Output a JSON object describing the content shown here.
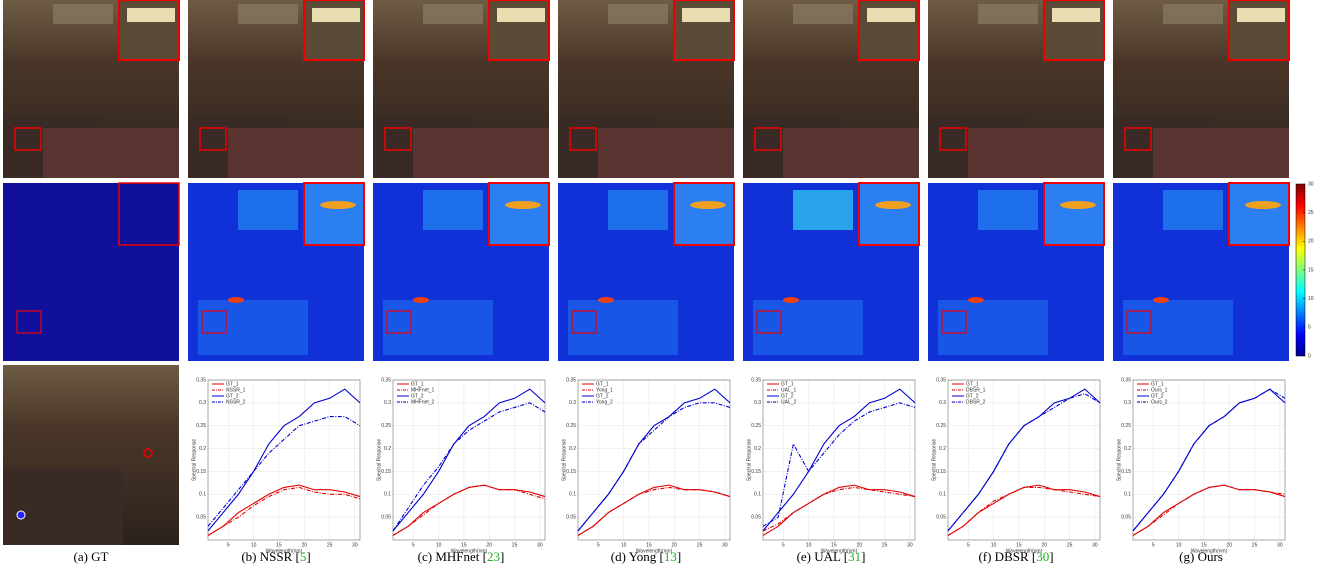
{
  "figure": {
    "captions": [
      {
        "text": "(a) GT"
      },
      {
        "text": "(b) NSSR [",
        "ref": "5",
        "close": "]"
      },
      {
        "text": "(c) MHFnet [",
        "ref": "23",
        "close": "]"
      },
      {
        "text": "(d) Yong [",
        "ref": "13",
        "close": "]"
      },
      {
        "text": "(e) UAL [",
        "ref": "31",
        "close": "]"
      },
      {
        "text": "(f) DBSR [",
        "ref": "30",
        "close": "]"
      },
      {
        "text": "(g) Ours"
      }
    ],
    "colorbar": {
      "ticks": [
        0,
        5,
        10,
        15,
        20,
        25,
        30
      ],
      "lim": [
        0,
        30
      ]
    },
    "panels": [
      {
        "type": "line",
        "ylabel": "Spectral Response",
        "xlabel": "Wavelength(nm)",
        "x": [
          1,
          4,
          7,
          10,
          13,
          16,
          19,
          22,
          25,
          28,
          31
        ],
        "xlim": [
          1,
          31
        ],
        "ylim": [
          0,
          0.35
        ],
        "xticks": [
          5,
          10,
          15,
          20,
          25,
          30
        ],
        "yticks": [
          0.05,
          0.1,
          0.15,
          0.2,
          0.25,
          0.3,
          0.35
        ],
        "grid": true,
        "series": [
          {
            "name": "GT_1",
            "color": "#e00000",
            "dashed": false,
            "values": [
              0.01,
              0.03,
              0.06,
              0.08,
              0.1,
              0.115,
              0.12,
              0.11,
              0.11,
              0.105,
              0.095
            ]
          },
          {
            "name": "NSSR_1",
            "color": "#e00000",
            "dashed": true,
            "values": [
              0.01,
              0.03,
              0.05,
              0.075,
              0.095,
              0.11,
              0.115,
              0.105,
              0.1,
              0.1,
              0.09
            ]
          },
          {
            "name": "GT_2",
            "color": "#0000d0",
            "dashed": false,
            "values": [
              0.02,
              0.06,
              0.1,
              0.15,
              0.21,
              0.25,
              0.27,
              0.3,
              0.31,
              0.33,
              0.3
            ]
          },
          {
            "name": "NSSR_2",
            "color": "#0000d0",
            "dashed": true,
            "values": [
              0.03,
              0.07,
              0.11,
              0.15,
              0.19,
              0.22,
              0.25,
              0.26,
              0.27,
              0.27,
              0.25
            ]
          }
        ]
      },
      {
        "type": "line",
        "ylabel": "Spectral Response",
        "xlabel": "Wavelength(nm)",
        "x": [
          1,
          4,
          7,
          10,
          13,
          16,
          19,
          22,
          25,
          28,
          31
        ],
        "xlim": [
          1,
          31
        ],
        "ylim": [
          0,
          0.35
        ],
        "xticks": [
          5,
          10,
          15,
          20,
          25,
          30
        ],
        "yticks": [
          0.05,
          0.1,
          0.15,
          0.2,
          0.25,
          0.3,
          0.35
        ],
        "grid": true,
        "series": [
          {
            "name": "GT_1",
            "color": "#e00000",
            "dashed": false,
            "values": [
              0.01,
              0.03,
              0.06,
              0.08,
              0.1,
              0.115,
              0.12,
              0.11,
              0.11,
              0.105,
              0.095
            ]
          },
          {
            "name": "MHFnet_1",
            "color": "#e00000",
            "dashed": true,
            "values": [
              0.01,
              0.03,
              0.055,
              0.08,
              0.1,
              0.115,
              0.12,
              0.11,
              0.11,
              0.1,
              0.09
            ]
          },
          {
            "name": "GT_2",
            "color": "#0000d0",
            "dashed": false,
            "values": [
              0.02,
              0.06,
              0.1,
              0.15,
              0.21,
              0.25,
              0.27,
              0.3,
              0.31,
              0.33,
              0.3
            ]
          },
          {
            "name": "MHFnet_2",
            "color": "#0000d0",
            "dashed": true,
            "values": [
              0.02,
              0.07,
              0.12,
              0.16,
              0.21,
              0.24,
              0.26,
              0.28,
              0.29,
              0.3,
              0.28
            ]
          }
        ]
      },
      {
        "type": "line",
        "ylabel": "Spectral Response",
        "xlabel": "Wavelength(nm)",
        "x": [
          1,
          4,
          7,
          10,
          13,
          16,
          19,
          22,
          25,
          28,
          31
        ],
        "xlim": [
          1,
          31
        ],
        "ylim": [
          0,
          0.35
        ],
        "xticks": [
          5,
          10,
          15,
          20,
          25,
          30
        ],
        "yticks": [
          0.05,
          0.1,
          0.15,
          0.2,
          0.25,
          0.3,
          0.35
        ],
        "grid": true,
        "series": [
          {
            "name": "GT_1",
            "color": "#e00000",
            "dashed": false,
            "values": [
              0.01,
              0.03,
              0.06,
              0.08,
              0.1,
              0.115,
              0.12,
              0.11,
              0.11,
              0.105,
              0.095
            ]
          },
          {
            "name": "Yong_1",
            "color": "#e00000",
            "dashed": true,
            "values": [
              0.01,
              0.03,
              0.06,
              0.08,
              0.1,
              0.11,
              0.115,
              0.11,
              0.11,
              0.105,
              0.095
            ]
          },
          {
            "name": "GT_2",
            "color": "#0000d0",
            "dashed": false,
            "values": [
              0.02,
              0.06,
              0.1,
              0.15,
              0.21,
              0.25,
              0.27,
              0.3,
              0.31,
              0.33,
              0.3
            ]
          },
          {
            "name": "Yong_2",
            "color": "#0000d0",
            "dashed": true,
            "values": [
              0.02,
              0.06,
              0.1,
              0.15,
              0.21,
              0.24,
              0.27,
              0.29,
              0.3,
              0.3,
              0.29
            ]
          }
        ]
      },
      {
        "type": "line",
        "ylabel": "Spectral Response",
        "xlabel": "Wavelength(nm)",
        "x": [
          1,
          4,
          7,
          10,
          13,
          16,
          19,
          22,
          25,
          28,
          31
        ],
        "xlim": [
          1,
          31
        ],
        "ylim": [
          0,
          0.35
        ],
        "xticks": [
          5,
          10,
          15,
          20,
          25,
          30
        ],
        "yticks": [
          0.05,
          0.1,
          0.15,
          0.2,
          0.25,
          0.3,
          0.35
        ],
        "grid": true,
        "series": [
          {
            "name": "GT_1",
            "color": "#e00000",
            "dashed": false,
            "values": [
              0.01,
              0.03,
              0.06,
              0.08,
              0.1,
              0.115,
              0.12,
              0.11,
              0.11,
              0.105,
              0.095
            ]
          },
          {
            "name": "UAL_1",
            "color": "#e00000",
            "dashed": true,
            "values": [
              0.02,
              0.035,
              0.06,
              0.08,
              0.1,
              0.11,
              0.115,
              0.11,
              0.105,
              0.1,
              0.095
            ]
          },
          {
            "name": "GT_2",
            "color": "#0000d0",
            "dashed": false,
            "values": [
              0.02,
              0.06,
              0.1,
              0.15,
              0.21,
              0.25,
              0.27,
              0.3,
              0.31,
              0.33,
              0.3
            ]
          },
          {
            "name": "UAL_2",
            "color": "#0000d0",
            "dashed": true,
            "values": [
              0.03,
              0.05,
              0.21,
              0.15,
              0.19,
              0.23,
              0.26,
              0.28,
              0.29,
              0.3,
              0.29
            ]
          }
        ]
      },
      {
        "type": "line",
        "ylabel": "Spectral Response",
        "xlabel": "Wavelength(nm)",
        "x": [
          1,
          4,
          7,
          10,
          13,
          16,
          19,
          22,
          25,
          28,
          31
        ],
        "xlim": [
          1,
          31
        ],
        "ylim": [
          0,
          0.35
        ],
        "xticks": [
          5,
          10,
          15,
          20,
          25,
          30
        ],
        "yticks": [
          0.05,
          0.1,
          0.15,
          0.2,
          0.25,
          0.3,
          0.35
        ],
        "grid": true,
        "series": [
          {
            "name": "GT_1",
            "color": "#e00000",
            "dashed": false,
            "values": [
              0.01,
              0.03,
              0.06,
              0.08,
              0.1,
              0.115,
              0.12,
              0.11,
              0.11,
              0.105,
              0.095
            ]
          },
          {
            "name": "DBSR_1",
            "color": "#e00000",
            "dashed": true,
            "values": [
              0.01,
              0.03,
              0.06,
              0.085,
              0.1,
              0.115,
              0.115,
              0.11,
              0.105,
              0.1,
              0.095
            ]
          },
          {
            "name": "GT_2",
            "color": "#0000d0",
            "dashed": false,
            "values": [
              0.02,
              0.06,
              0.1,
              0.15,
              0.21,
              0.25,
              0.27,
              0.3,
              0.31,
              0.33,
              0.3
            ]
          },
          {
            "name": "DBSR_2",
            "color": "#0000d0",
            "dashed": true,
            "values": [
              0.02,
              0.06,
              0.1,
              0.15,
              0.21,
              0.25,
              0.27,
              0.29,
              0.31,
              0.32,
              0.3
            ]
          }
        ]
      },
      {
        "type": "line",
        "ylabel": "Spectral Response",
        "xlabel": "Wavelength(nm)",
        "x": [
          1,
          4,
          7,
          10,
          13,
          16,
          19,
          22,
          25,
          28,
          31
        ],
        "xlim": [
          1,
          31
        ],
        "ylim": [
          0,
          0.35
        ],
        "xticks": [
          5,
          10,
          15,
          20,
          25,
          30
        ],
        "yticks": [
          0.05,
          0.1,
          0.15,
          0.2,
          0.25,
          0.3,
          0.35
        ],
        "grid": true,
        "series": [
          {
            "name": "GT_1",
            "color": "#e00000",
            "dashed": false,
            "values": [
              0.01,
              0.03,
              0.06,
              0.08,
              0.1,
              0.115,
              0.12,
              0.11,
              0.11,
              0.105,
              0.095
            ]
          },
          {
            "name": "Ours_1",
            "color": "#e00000",
            "dashed": true,
            "values": [
              0.01,
              0.03,
              0.055,
              0.08,
              0.1,
              0.115,
              0.12,
              0.11,
              0.11,
              0.105,
              0.1
            ]
          },
          {
            "name": "GT_2",
            "color": "#0000d0",
            "dashed": false,
            "values": [
              0.02,
              0.06,
              0.1,
              0.15,
              0.21,
              0.25,
              0.27,
              0.3,
              0.31,
              0.33,
              0.3
            ]
          },
          {
            "name": "Ours_2",
            "color": "#0000d0",
            "dashed": true,
            "values": [
              0.02,
              0.06,
              0.1,
              0.15,
              0.21,
              0.25,
              0.27,
              0.3,
              0.31,
              0.33,
              0.31
            ]
          }
        ]
      }
    ]
  }
}
